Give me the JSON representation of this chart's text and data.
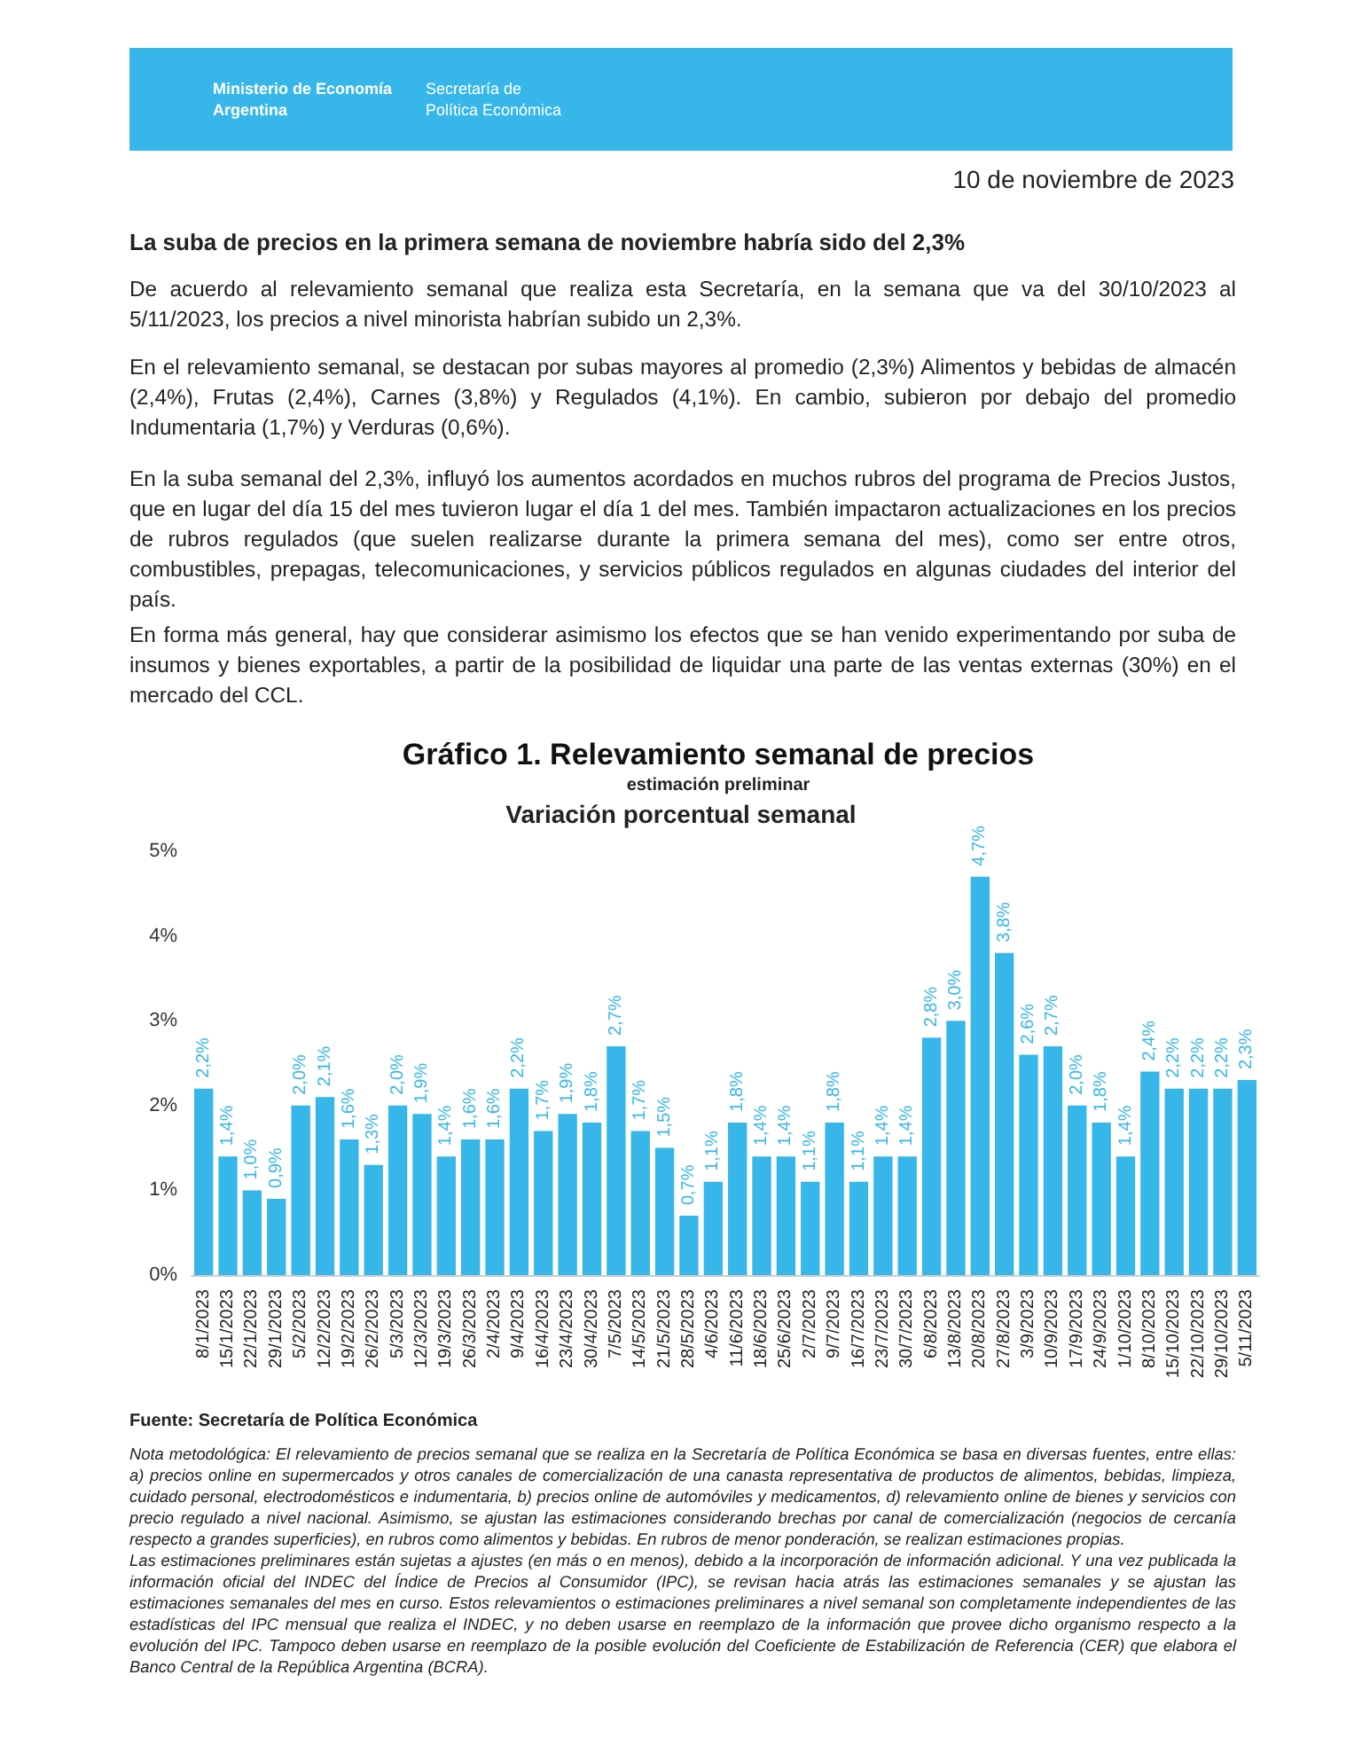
{
  "chart_data": {
    "type": "bar",
    "title": "Gráfico 1. Relevamiento semanal de precios",
    "subtitle": "estimación preliminar",
    "annotations": [
      "Ministerio de Economía\nArgentina",
      "Secretaría de\nPolítica Económica",
      "10 de noviembre de 2023",
      "La suba de precios en la primera semana de noviembre habría sido del 2,3%",
      "De acuerdo al relevamiento semanal que realiza esta Secretaría, en la semana que va del 30/10/2023 al 5/11/2023, los precios a nivel minorista habrían subido un 2,3%.",
      "En el relevamiento semanal, se destacan por subas mayores al promedio (2,3%) Alimentos y bebidas de almacén (2,4%), Frutas (2,4%), Carnes (3,8%) y Regulados (4,1%). En cambio, subieron por debajo del promedio Indumentaria (1,7%) y Verduras (0,6%).",
      "En la suba semanal del 2,3%, influyó los aumentos acordados en muchos rubros del programa de Precios Justos, que en lugar del día 15 del mes tuvieron lugar el día 1 del mes. También impactaron actualizaciones en los precios de rubros regulados (que suelen realizarse durante la primera semana del mes), como ser entre otros, combustibles, prepagas, telecomunicaciones, y servicios públicos regulados en algunas ciudades del interior del país.",
      "En forma más general, hay que considerar asimismo los efectos que se han venido experimentando por suba de insumos y bienes exportables, a partir de la posibilidad de liquidar una parte de las ventas externas (30%) en el mercado del CCL.",
      "Variación porcentual semanal",
      "Fuente: Secretaría de Política Económica",
      "Nota metodológica: El relevamiento de precios semanal que se realiza en la Secretaría de Política Económica se basa en diversas fuentes, entre ellas: a) precios online en supermercados y otros canales de comercialización de una canasta representativa de productos de alimentos, bebidas, limpieza, cuidado personal, electrodomésticos e indumentaria, b) precios online de automóviles y medicamentos, d) relevamiento online de bienes y servicios con precio regulado a nivel nacional. Asimismo, se ajustan las estimaciones considerando brechas por canal de comercialización (negocios de cercanía respecto a grandes superficies), en rubros como alimentos y bebidas. En rubros de menor ponderación, se realizan estimaciones propias.",
      "Las estimaciones preliminares están sujetas a ajustes (en más o en menos), debido a la incorporación de información adicional. Y una vez publicada la información oficial del INDEC del Índice de Precios al Consumidor (IPC), se revisan hacia atrás las estimaciones semanales y se ajustan las estimaciones semanales del mes en curso. Estos relevamientos o estimaciones preliminares a nivel semanal son completamente independientes de las estadísticas del IPC mensual que realiza el INDEC, y no deben usarse en reemplazo de la información que provee dicho organismo respecto a la evolución del IPC. Tampoco deben usarse en reemplazo de la posible evolución del Coeficiente de Estabilización de Referencia (CER) que elabora el Banco Central de la República Argentina (BCRA)."
    ],
    "categories": [
      "8/1/2023",
      "15/1/2023",
      "22/1/2023",
      "29/1/2023",
      "5/2/2023",
      "12/2/2023",
      "19/2/2023",
      "26/2/2023",
      "5/3/2023",
      "12/3/2023",
      "19/3/2023",
      "26/3/2023",
      "2/4/2023",
      "9/4/2023",
      "16/4/2023",
      "23/4/2023",
      "30/4/2023",
      "7/5/2023",
      "14/5/2023",
      "21/5/2023",
      "28/5/2023",
      "4/6/2023",
      "11/6/2023",
      "18/6/2023",
      "25/6/2023",
      "2/7/2023",
      "9/7/2023",
      "16/7/2023",
      "23/7/2023",
      "30/7/2023",
      "6/8/2023",
      "13/8/2023",
      "20/8/2023",
      "27/8/2023",
      "3/9/2023",
      "10/9/2023",
      "17/9/2023",
      "24/9/2023",
      "1/10/2023",
      "8/10/2023",
      "15/10/2023",
      "22/10/2023",
      "29/10/2023",
      "5/11/2023"
    ],
    "values": [
      2.2,
      1.4,
      1.0,
      0.9,
      2.0,
      2.1,
      1.6,
      1.3,
      2.0,
      1.9,
      1.4,
      1.6,
      1.6,
      2.2,
      1.7,
      1.9,
      1.8,
      2.7,
      1.7,
      1.5,
      0.7,
      1.1,
      1.8,
      1.4,
      1.4,
      1.1,
      1.8,
      1.1,
      1.4,
      1.4,
      2.8,
      3.0,
      4.7,
      3.8,
      2.6,
      2.7,
      2.0,
      1.8,
      1.4,
      2.4,
      2.2,
      2.2,
      2.2,
      2.3
    ],
    "value_labels": [
      "2,2%",
      "1,4%",
      "1,0%",
      "0,9%",
      "2,0%",
      "2,1%",
      "1,6%",
      "1,3%",
      "2,0%",
      "1,9%",
      "1,4%",
      "1,6%",
      "1,6%",
      "2,2%",
      "1,7%",
      "1,9%",
      "1,8%",
      "2,7%",
      "1,7%",
      "1,5%",
      "0,7%",
      "1,1%",
      "1,8%",
      "1,4%",
      "1,4%",
      "1,1%",
      "1,8%",
      "1,1%",
      "1,4%",
      "1,4%",
      "2,8%",
      "3,0%",
      "4,7%",
      "3,8%",
      "2,6%",
      "2,7%",
      "2,0%",
      "1,8%",
      "1,4%",
      "2,4%",
      "2,2%",
      "2,2%",
      "2,2%",
      "2,3%"
    ],
    "color": "#37b6e9",
    "ylim": [
      0,
      5
    ],
    "yticks": [
      {
        "value": 0,
        "label": "0%"
      },
      {
        "value": 1,
        "label": "1%"
      },
      {
        "value": 2,
        "label": "2%"
      },
      {
        "value": 3,
        "label": "3%"
      },
      {
        "value": 4,
        "label": "4%"
      },
      {
        "value": 5,
        "label": "5%"
      }
    ],
    "grid": false
  }
}
